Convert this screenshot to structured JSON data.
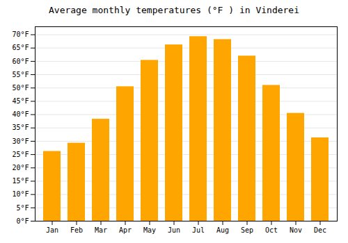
{
  "chart_data": {
    "type": "bar",
    "title": "Average monthly temperatures (°F ) in Vinderei",
    "categories": [
      "Jan",
      "Feb",
      "Mar",
      "Apr",
      "May",
      "Jun",
      "Jul",
      "Aug",
      "Sep",
      "Oct",
      "Nov",
      "Dec"
    ],
    "values": [
      26.2,
      29.3,
      38.3,
      50.5,
      60.4,
      66.2,
      69.3,
      68.2,
      62.0,
      51.0,
      40.5,
      31.3
    ],
    "color": "#FFA500",
    "ylim": [
      0,
      73
    ],
    "yticks": [
      {
        "value": 0,
        "label": "0°F"
      },
      {
        "value": 5,
        "label": "5°F"
      },
      {
        "value": 10,
        "label": "10°F"
      },
      {
        "value": 15,
        "label": "15°F"
      },
      {
        "value": 20,
        "label": "20°F"
      },
      {
        "value": 25,
        "label": "25°F"
      },
      {
        "value": 30,
        "label": "30°F"
      },
      {
        "value": 35,
        "label": "35°F"
      },
      {
        "value": 40,
        "label": "40°F"
      },
      {
        "value": 45,
        "label": "45°F"
      },
      {
        "value": 50,
        "label": "50°F"
      },
      {
        "value": 55,
        "label": "55°F"
      },
      {
        "value": 60,
        "label": "60°F"
      },
      {
        "value": 65,
        "label": "65°F"
      },
      {
        "value": 70,
        "label": "70°F"
      }
    ],
    "grid": true
  }
}
